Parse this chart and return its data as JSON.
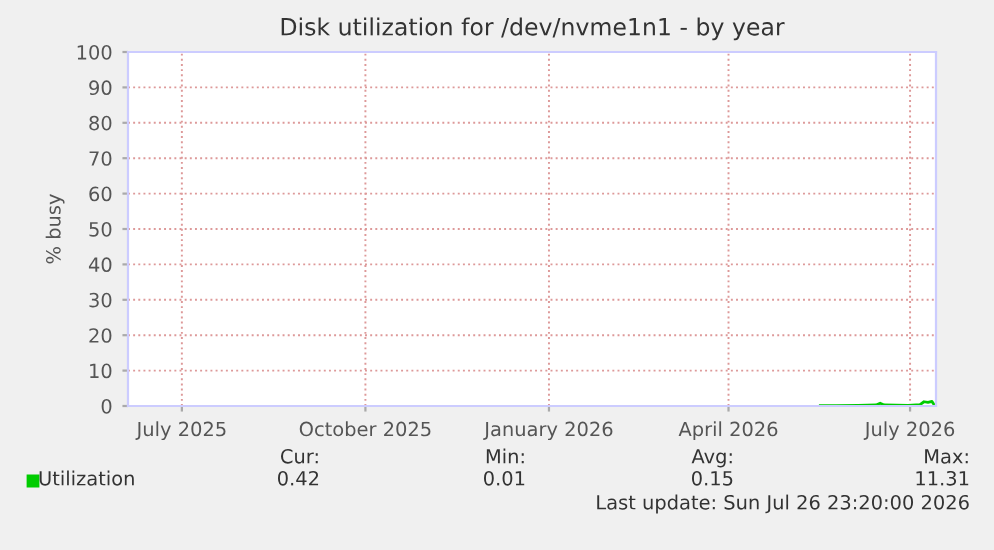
{
  "chart_data": {
    "type": "line",
    "title": "Disk utilization for /dev/nvme1n1 - by year",
    "ylabel": "% busy",
    "xlim": [
      "2025-06-04",
      "2026-07-14"
    ],
    "xticks": [
      {
        "value": "2025-07-01",
        "label": "July 2025"
      },
      {
        "value": "2025-10-01",
        "label": "October 2025"
      },
      {
        "value": "2026-01-01",
        "label": "January 2026"
      },
      {
        "value": "2026-04-01",
        "label": "April 2026"
      },
      {
        "value": "2026-07-01",
        "label": "July 2026"
      }
    ],
    "ylim": [
      0,
      100
    ],
    "yticks": [
      0,
      10,
      20,
      30,
      40,
      50,
      60,
      70,
      80,
      90,
      100
    ],
    "grid": true,
    "legend": "bottom left",
    "series": [
      {
        "name": "Utilization",
        "color": "#00cc00",
        "x": [
          "2026-05-17",
          "2026-05-25",
          "2026-06-05",
          "2026-06-14",
          "2026-06-16",
          "2026-06-18",
          "2026-06-30",
          "2026-07-06",
          "2026-07-08",
          "2026-07-10",
          "2026-07-12",
          "2026-07-13"
        ],
        "values": [
          0.1,
          0.1,
          0.15,
          0.3,
          0.8,
          0.3,
          0.2,
          0.4,
          1.2,
          1.0,
          1.3,
          0.42
        ]
      }
    ],
    "annotations": [
      "Cur:",
      "Min:",
      "Avg:",
      "Max:",
      "0.42",
      "0.01",
      "0.15",
      "11.31",
      "Last update: Sun Jul 26 23:20:00 2026"
    ]
  }
}
